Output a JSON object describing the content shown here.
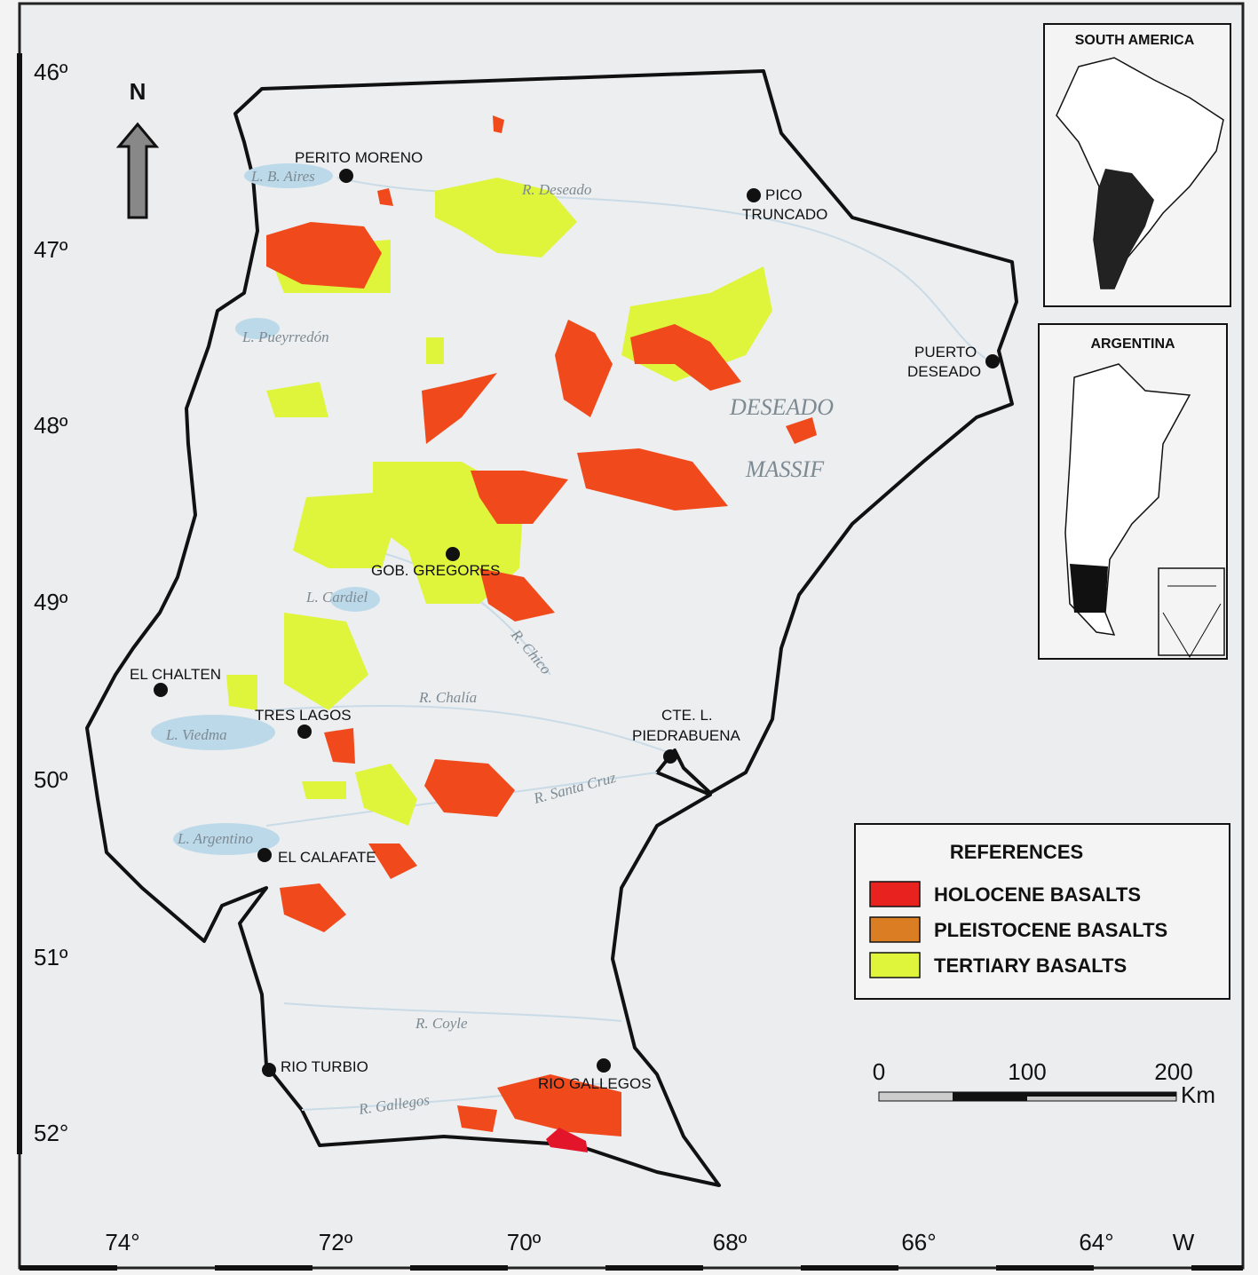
{
  "map": {
    "north": "N",
    "latitudes": [
      "46º",
      "47º",
      "48º",
      "49º",
      "50º",
      "51º",
      "52°"
    ],
    "longitudes": [
      "74°",
      "72º",
      "70º",
      "68º",
      "66°",
      "64°",
      "W"
    ],
    "cities": [
      [
        "PERITO MORENO"
      ],
      [
        "PICO",
        "TRUNCADO"
      ],
      [
        "PUERTO",
        "DESEADO"
      ],
      [
        "GOB. GREGORES"
      ],
      [
        "EL CHALTEN"
      ],
      [
        "TRES LAGOS"
      ],
      [
        "CTE. L.",
        "PIEDRABUENA"
      ],
      [
        "EL CALAFATE"
      ],
      [
        "RIO TURBIO"
      ],
      [
        "RIO GALLEGOS"
      ]
    ],
    "features": [
      "L. B. Aires",
      "R. Deseado",
      "L. Pueyrredón",
      "L. Cardiel",
      "R. Chico",
      "R. Chalía",
      "L. Viedma",
      "R. Santa Cruz",
      "L. Argentino",
      "R. Coyle",
      "R. Gallegos"
    ],
    "regions": [
      "DESEADO",
      "MASSIF"
    ]
  },
  "insets": [
    "SOUTH AMERICA",
    "ARGENTINA"
  ],
  "legend": {
    "title": "REFERENCES",
    "items": [
      {
        "label": "HOLOCENE BASALTS",
        "color": "#e8231f"
      },
      {
        "label": "PLEISTOCENE BASALTS",
        "color": "#db7d22"
      },
      {
        "label": "TERTIARY BASALTS",
        "color": "#dff53c"
      }
    ]
  },
  "scale": {
    "labels": [
      "0",
      "100",
      "200"
    ],
    "unit": "Km"
  }
}
